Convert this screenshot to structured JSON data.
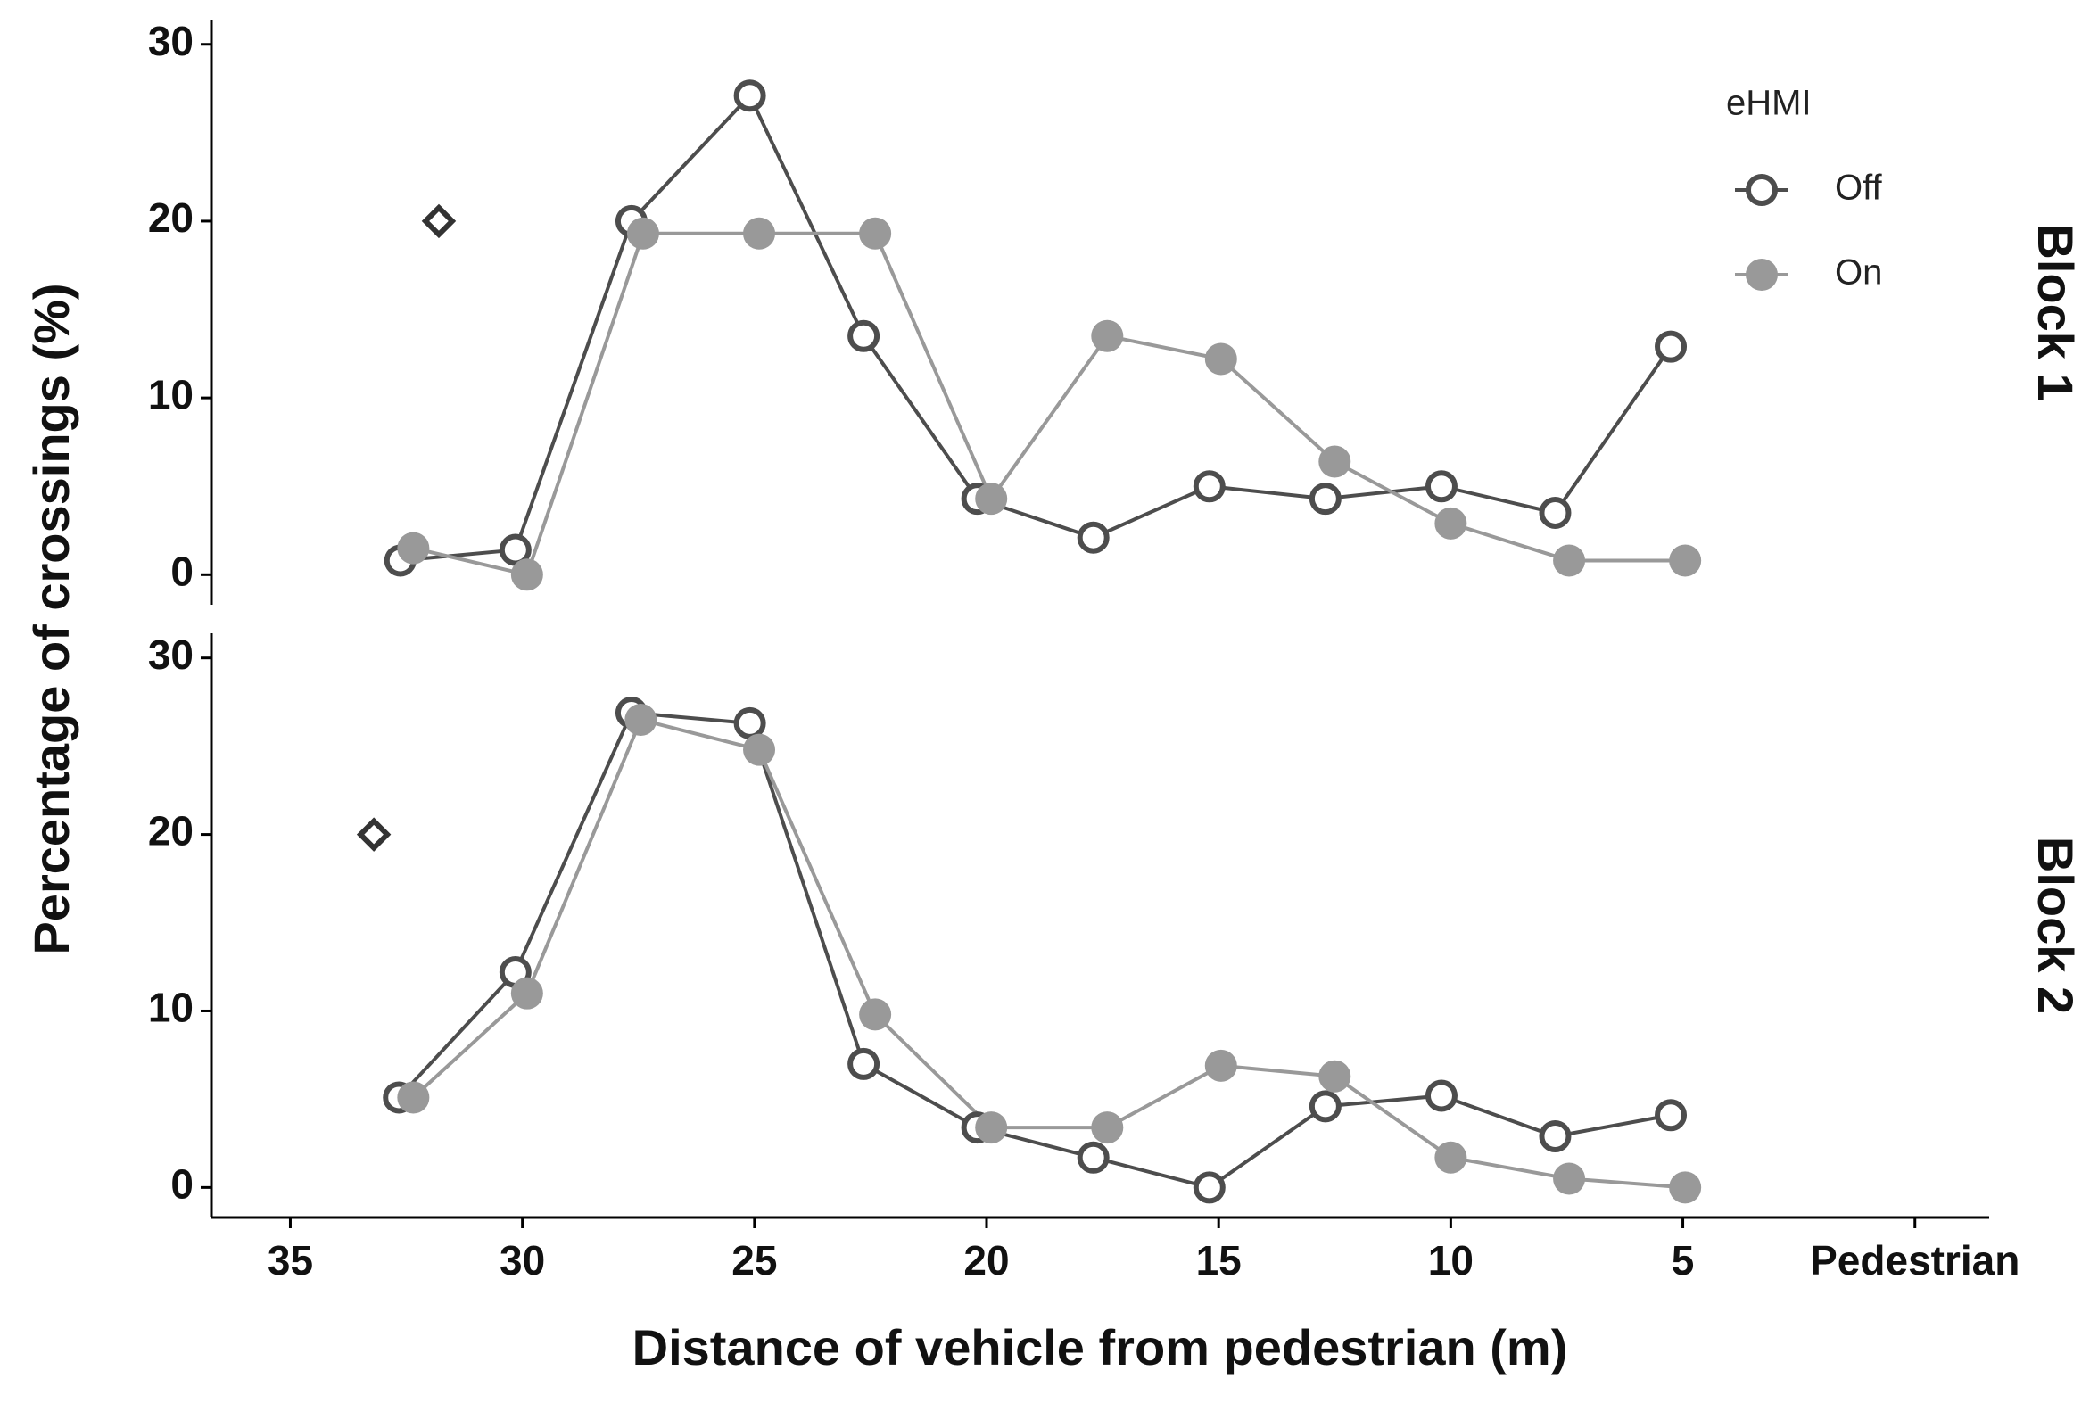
{
  "chart_data": [
    {
      "type": "line",
      "title": "Block 1",
      "ylabel": "Percentage of crossings (%)",
      "legend_title": "eHMI",
      "legend": "top-right",
      "xlim": [
        36.7,
        -1.6
      ],
      "ylim": [
        -1.7,
        31.4
      ],
      "yticks": [
        0,
        10,
        20,
        30
      ],
      "series": [
        {
          "name": "Off",
          "color": "#4d4d4d",
          "marker": "open-circle",
          "x": [
            32.63,
            30.15,
            27.65,
            25.1,
            22.65,
            20.2,
            17.7,
            15.2,
            12.7,
            10.2,
            7.75,
            5.26
          ],
          "values": [
            0.8,
            1.4,
            20.0,
            27.1,
            13.5,
            4.3,
            2.1,
            5.0,
            4.3,
            5.0,
            3.5,
            12.9
          ]
        },
        {
          "name": "On",
          "color": "#999999",
          "marker": "filled-circle",
          "x": [
            32.35,
            29.9,
            27.4,
            24.9,
            22.4,
            19.9,
            17.4,
            14.95,
            12.5,
            10.0,
            7.45,
            4.95
          ],
          "values": [
            1.5,
            0,
            19.3,
            19.3,
            19.3,
            4.3,
            13.5,
            12.2,
            6.4,
            2.9,
            0.8,
            0.8
          ]
        }
      ],
      "markers": [
        {
          "x": 31.8,
          "y": 20
        }
      ]
    },
    {
      "type": "line",
      "title": "Block 2",
      "xlabel": "Distance of vehicle from pedestrian (m)",
      "xlim": [
        36.7,
        -1.6
      ],
      "ylim": [
        -1.7,
        31.4
      ],
      "yticks": [
        0,
        10,
        20,
        30
      ],
      "xticks": [
        35,
        30,
        25,
        20,
        15,
        10,
        5,
        {
          "value": 0,
          "label": "Pedestrian"
        }
      ],
      "series": [
        {
          "color": "#4d4d4d",
          "marker": "open-circle",
          "x": [
            32.66,
            30.15,
            27.65,
            25.1,
            22.65,
            20.2,
            17.7,
            15.2,
            12.7,
            10.2,
            7.75,
            5.26
          ],
          "values": [
            5.1,
            12.2,
            26.9,
            26.3,
            7.0,
            3.4,
            1.7,
            0,
            4.6,
            5.2,
            2.9,
            4.1
          ]
        },
        {
          "color": "#999999",
          "marker": "filled-circle",
          "x": [
            32.35,
            29.9,
            27.45,
            24.9,
            22.4,
            19.9,
            17.4,
            14.95,
            12.5,
            10.0,
            7.45,
            4.95
          ],
          "values": [
            5.1,
            11.0,
            26.5,
            24.8,
            9.8,
            3.4,
            3.4,
            6.9,
            6.3,
            1.7,
            0.5,
            0
          ]
        }
      ],
      "markers": [
        {
          "x": 33.2,
          "y": 20
        }
      ]
    }
  ]
}
